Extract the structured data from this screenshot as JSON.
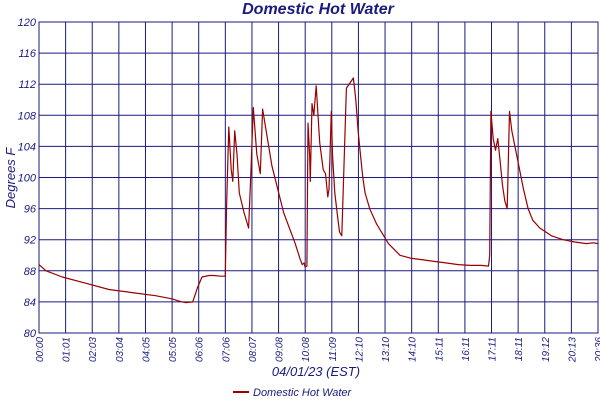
{
  "chart_data": {
    "type": "line",
    "title": "Domestic Hot Water",
    "xlabel": "04/01/23 (EST)",
    "ylabel": "Degrees F",
    "ylim": [
      80,
      120
    ],
    "yticks": [
      80,
      84,
      88,
      92,
      96,
      100,
      104,
      108,
      112,
      116,
      120
    ],
    "xlim_hours": [
      0,
      24
    ],
    "xtick_labels": [
      "00:00",
      "01:01",
      "02:03",
      "03:04",
      "04:05",
      "05:05",
      "06:06",
      "07:06",
      "08:07",
      "09:08",
      "10:08",
      "11:09",
      "12:10",
      "13:10",
      "14:10",
      "15:11",
      "16:11",
      "17:11",
      "18:11",
      "19:12",
      "20:13",
      "20:36"
    ],
    "grid": true,
    "legend_position": "bottom-center",
    "colors": {
      "series": "#990000",
      "grid": "#1a1a80",
      "text": "#1a1a80"
    },
    "series": [
      {
        "name": "Domestic Hot Water",
        "x_hours": [
          0,
          0.3,
          1.0,
          2.0,
          3.0,
          4.0,
          5.0,
          5.7,
          6.0,
          6.3,
          6.6,
          6.8,
          7.0,
          7.3,
          7.5,
          7.8,
          8.0,
          8.05,
          8.15,
          8.25,
          8.32,
          8.4,
          8.5,
          8.6,
          8.8,
          9.0,
          9.1,
          9.2,
          9.35,
          9.5,
          9.6,
          10.0,
          10.5,
          11.0,
          11.2,
          11.3,
          11.38,
          11.42,
          11.5,
          11.55,
          11.62,
          11.65,
          11.72,
          11.8,
          11.9,
          12.05,
          12.2,
          12.3,
          12.4,
          12.45,
          12.55,
          12.6,
          12.7,
          12.8,
          12.9,
          13.0,
          13.2,
          13.5,
          13.6,
          13.7,
          13.8,
          13.9,
          14.0,
          14.2,
          14.5,
          15.0,
          15.5,
          16.0,
          16.5,
          17.0,
          17.5,
          18.0,
          18.5,
          19.0,
          19.3,
          19.35,
          19.4,
          19.5,
          19.6,
          19.7,
          19.8,
          19.9,
          20.0,
          20.1,
          20.2,
          20.3,
          20.6,
          20.8,
          21.0,
          21.2,
          21.5,
          22.0,
          22.5,
          23.0,
          23.5,
          23.8,
          24.0
        ],
        "values": [
          88.8,
          88.0,
          87.2,
          86.4,
          85.6,
          85.2,
          84.8,
          84.4,
          84.1,
          83.9,
          84.0,
          85.8,
          87.2,
          87.4,
          87.4,
          87.3,
          87.3,
          96.0,
          106.5,
          101.0,
          99.5,
          106.0,
          103.0,
          98.0,
          95.5,
          93.5,
          101.0,
          109.0,
          103.0,
          100.5,
          108.8,
          101.5,
          95.5,
          91.5,
          89.6,
          88.8,
          89.0,
          88.5,
          88.6,
          107.0,
          103.0,
          99.5,
          109.5,
          108.0,
          111.8,
          104.5,
          101.0,
          100.5,
          97.5,
          98.5,
          108.5,
          103.0,
          98.0,
          95.5,
          93.0,
          92.5,
          111.5,
          112.8,
          110.0,
          106.0,
          103.0,
          100.0,
          98.0,
          96.0,
          94.0,
          91.5,
          90.0,
          89.6,
          89.4,
          89.2,
          89.0,
          88.8,
          88.7,
          88.7,
          88.6,
          90.0,
          108.5,
          105.0,
          103.5,
          105.0,
          102.0,
          99.0,
          97.0,
          96.0,
          108.5,
          106.0,
          101.5,
          98.5,
          96.0,
          94.5,
          93.5,
          92.5,
          92.0,
          91.7,
          91.5,
          91.6,
          91.5
        ]
      }
    ]
  }
}
